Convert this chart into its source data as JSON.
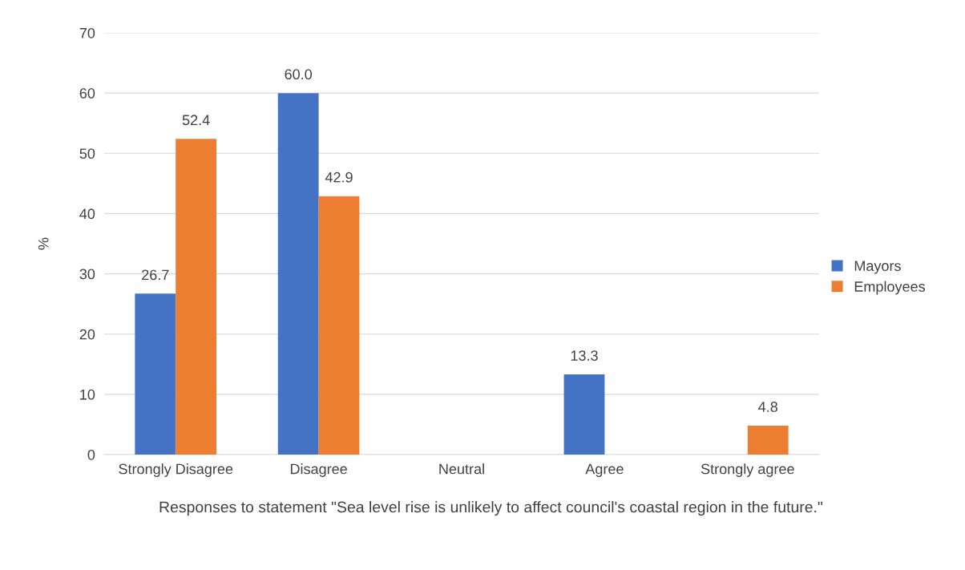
{
  "chart_data": {
    "type": "bar",
    "ylabel": "%",
    "xlabel": "Responses to statement \"Sea level rise is unlikely to affect council's coastal region in the future.\"",
    "categories": [
      "Strongly Disagree",
      "Disagree",
      "Neutral",
      "Agree",
      "Strongly agree"
    ],
    "series": [
      {
        "name": "Mayors",
        "color": "#4472c4",
        "values": [
          26.7,
          60.0,
          null,
          13.3,
          null
        ],
        "value_labels": [
          "26.7",
          "60.0",
          null,
          "13.3",
          null
        ]
      },
      {
        "name": "Employees",
        "color": "#ed7d31",
        "values": [
          52.4,
          42.9,
          null,
          null,
          4.8
        ],
        "value_labels": [
          "52.4",
          "42.9",
          null,
          null,
          "4.8"
        ]
      }
    ],
    "ylim": [
      0,
      70
    ],
    "yticks": [
      0,
      10,
      20,
      30,
      40,
      50,
      60,
      70
    ],
    "grid": "y",
    "legend": "right"
  }
}
